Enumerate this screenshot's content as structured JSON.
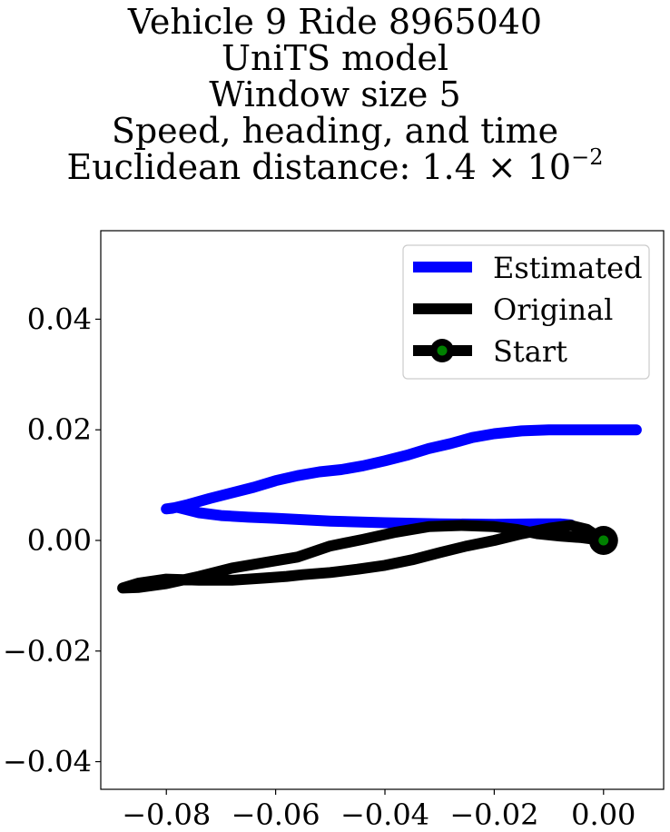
{
  "chart_data": {
    "type": "line",
    "title": "Vehicle 9 Ride 8965040\nUniTS model\nWindow size 5\nSpeed, heading, and time\nEuclidean distance: 1.4 × 10^-2",
    "title_lines": [
      "Vehicle 9 Ride 8965040",
      "UniTS model",
      "Window size 5",
      "Speed, heading, and time"
    ],
    "distance_label": "Euclidean distance: ",
    "distance_mantissa": "1.4 × 10",
    "distance_exponent": "−2",
    "xlabel": "",
    "ylabel": "",
    "xlim": [
      -0.092,
      0.011
    ],
    "ylim": [
      -0.045,
      0.056
    ],
    "xticks": [
      -0.08,
      -0.06,
      -0.04,
      -0.02,
      0.0
    ],
    "xtick_labels": [
      "−0.08",
      "−0.06",
      "−0.04",
      "−0.02",
      "0.00"
    ],
    "yticks": [
      0.04,
      0.02,
      0.0,
      -0.02,
      -0.04
    ],
    "ytick_labels": [
      "0.04",
      "0.02",
      "0.00",
      "−0.02",
      "−0.04"
    ],
    "legend_position": "top-right",
    "series": [
      {
        "name": "Estimated",
        "color": "#0000ff",
        "x": [
          0.006,
          0.0,
          -0.005,
          -0.01,
          -0.015,
          -0.02,
          -0.024,
          -0.028,
          -0.032,
          -0.036,
          -0.04,
          -0.044,
          -0.048,
          -0.052,
          -0.056,
          -0.06,
          -0.064,
          -0.068,
          -0.072,
          -0.076,
          -0.079,
          -0.08,
          -0.078,
          -0.076,
          -0.074,
          -0.07,
          -0.065,
          -0.06,
          -0.05,
          -0.04,
          -0.03,
          -0.02,
          -0.012,
          -0.008,
          -0.006
        ],
        "y": [
          0.02,
          0.02,
          0.02,
          0.02,
          0.0198,
          0.0193,
          0.0186,
          0.0175,
          0.0166,
          0.0154,
          0.0144,
          0.0135,
          0.0128,
          0.0124,
          0.0117,
          0.0108,
          0.0096,
          0.0086,
          0.0076,
          0.0065,
          0.0058,
          0.0057,
          0.006,
          0.0055,
          0.005,
          0.0045,
          0.0042,
          0.004,
          0.0035,
          0.0032,
          0.003,
          0.0029,
          0.003,
          0.003,
          0.0028
        ]
      },
      {
        "name": "Original",
        "color": "#000000",
        "x": [
          0.0,
          -0.004,
          -0.008,
          -0.012,
          -0.016,
          -0.02,
          -0.026,
          -0.032,
          -0.038,
          -0.044,
          -0.05,
          -0.056,
          -0.062,
          -0.068,
          -0.074,
          -0.08,
          -0.085,
          -0.088,
          -0.085,
          -0.08,
          -0.074,
          -0.068,
          -0.062,
          -0.058,
          -0.055,
          -0.05,
          -0.045,
          -0.04,
          -0.035,
          -0.03,
          -0.025,
          -0.02,
          -0.015,
          -0.01,
          -0.006,
          -0.003,
          0.0
        ],
        "y": [
          0.0,
          0.0005,
          0.0008,
          0.0012,
          0.002,
          0.0025,
          0.0027,
          0.0025,
          0.0015,
          0.0002,
          -0.001,
          -0.003,
          -0.004,
          -0.005,
          -0.0065,
          -0.0078,
          -0.0085,
          -0.0086,
          -0.0077,
          -0.007,
          -0.0072,
          -0.0072,
          -0.0068,
          -0.0065,
          -0.0062,
          -0.0058,
          -0.0052,
          -0.0045,
          -0.0035,
          -0.0022,
          -0.001,
          0.0,
          0.0012,
          0.0022,
          0.0027,
          0.002,
          0.0
        ]
      }
    ],
    "start_point": {
      "name": "Start",
      "x": 0.0,
      "y": 0.0,
      "fill_color": "#008000",
      "edge_color": "#000000"
    }
  }
}
